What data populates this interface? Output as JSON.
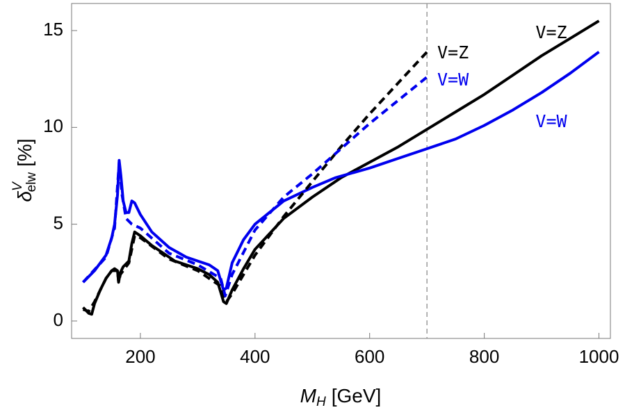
{
  "chart_data": {
    "type": "line",
    "xlabel": {
      "symbol": "M",
      "sub": "H",
      "unit": "[GeV]"
    },
    "ylabel": {
      "symbol": "δ",
      "sup": "V",
      "sub": "elw",
      "unit": "[%]"
    },
    "xlim": [
      80,
      1020
    ],
    "ylim": [
      -0.9,
      16.4
    ],
    "xticks": [
      200,
      400,
      600,
      800,
      1000
    ],
    "yticks": [
      0,
      5,
      10,
      15
    ],
    "vline": 700,
    "vline_color": "#999999",
    "series": [
      {
        "color": "#000000",
        "dash": false,
        "x": [
          100,
          110,
          115,
          120,
          130,
          140,
          150,
          155,
          160,
          162,
          165,
          170,
          180,
          185,
          190,
          200,
          220,
          240,
          260,
          280,
          300,
          320,
          335,
          345,
          350,
          360,
          380,
          400,
          450,
          500,
          550,
          600,
          650,
          700,
          750,
          800,
          850,
          900,
          950,
          1000
        ],
        "values": [
          0.7,
          0.4,
          0.35,
          0.9,
          1.6,
          2.2,
          2.6,
          2.7,
          2.6,
          2.0,
          2.5,
          2.8,
          3.1,
          4.0,
          4.6,
          4.4,
          3.9,
          3.5,
          3.1,
          2.9,
          2.7,
          2.4,
          2.0,
          1.0,
          0.9,
          1.6,
          2.7,
          3.7,
          5.3,
          6.4,
          7.4,
          8.2,
          9.0,
          9.9,
          10.8,
          11.7,
          12.7,
          13.7,
          14.6,
          15.5
        ]
      },
      {
        "color": "#0000ee",
        "dash": false,
        "x": [
          100,
          120,
          140,
          150,
          155,
          160,
          163,
          166,
          170,
          175,
          180,
          185,
          190,
          200,
          220,
          250,
          280,
          300,
          320,
          335,
          345,
          350,
          360,
          380,
          400,
          450,
          500,
          540,
          600,
          650,
          700,
          750,
          800,
          850,
          900,
          950,
          1000
        ],
        "values": [
          2.0,
          2.6,
          3.4,
          4.3,
          5.0,
          6.5,
          8.3,
          7.5,
          6.2,
          5.6,
          5.6,
          6.2,
          6.1,
          5.5,
          4.6,
          3.8,
          3.3,
          3.1,
          2.9,
          2.6,
          1.6,
          1.7,
          3.0,
          4.2,
          5.0,
          6.2,
          6.9,
          7.4,
          7.9,
          8.4,
          8.9,
          9.4,
          10.1,
          10.9,
          11.8,
          12.8,
          13.9
        ]
      },
      {
        "color": "#000000",
        "dash": true,
        "x": [
          100,
          110,
          120,
          140,
          150,
          160,
          162,
          165,
          180,
          190,
          200,
          250,
          300,
          340,
          350,
          360,
          400,
          450,
          500,
          550,
          600,
          650,
          700
        ],
        "values": [
          0.6,
          0.5,
          1.0,
          2.2,
          2.6,
          2.6,
          2.0,
          2.4,
          3.0,
          4.4,
          4.3,
          3.2,
          2.6,
          1.8,
          1.0,
          1.4,
          3.4,
          5.4,
          7.2,
          9.0,
          10.7,
          12.3,
          13.9
        ]
      },
      {
        "color": "#0000ee",
        "dash": true,
        "x": [
          100,
          140,
          155,
          163,
          168,
          175,
          185,
          200,
          250,
          300,
          340,
          348,
          360,
          400,
          450,
          500,
          550,
          600,
          650,
          700
        ],
        "values": [
          2.0,
          3.3,
          4.8,
          8.2,
          6.5,
          5.3,
          5.0,
          4.8,
          3.5,
          2.9,
          2.2,
          1.3,
          2.4,
          4.7,
          6.4,
          7.6,
          8.9,
          10.2,
          11.4,
          12.6
        ]
      }
    ],
    "annotations": [
      {
        "text": "V=Z",
        "color": "#000000"
      },
      {
        "text": "V=W",
        "color": "#0000ee"
      },
      {
        "text": "V=Z",
        "color": "#000000"
      },
      {
        "text": "V=W",
        "color": "#0000ee"
      }
    ]
  }
}
